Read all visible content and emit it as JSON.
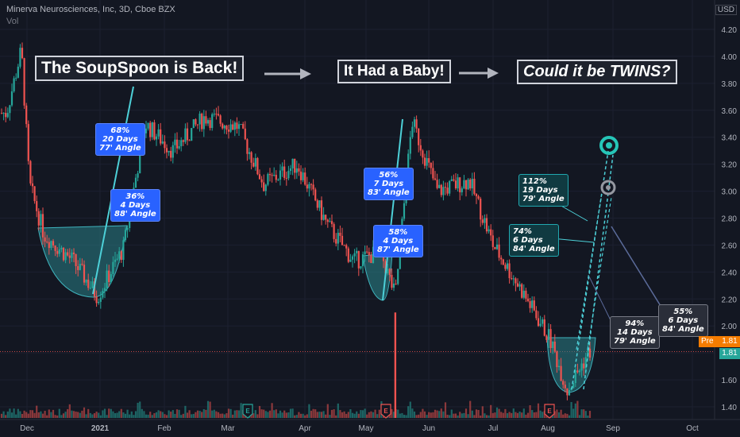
{
  "header": {
    "symbol_line": "Minerva Neurosciences, Inc, 3D, Cboe BZX",
    "indicator": "Vol",
    "currency": "USD"
  },
  "banners": {
    "soupspoon": "The SoupSpoon is Back!",
    "baby": "It Had a Baby!",
    "twins": "Could it be TWINS?"
  },
  "callouts": [
    {
      "pct": "68%",
      "days": "20 Days",
      "angle": "77' Angle"
    },
    {
      "pct": "36%",
      "days": "4 Days",
      "angle": "88' Angle"
    },
    {
      "pct": "56%",
      "days": "7 Days",
      "angle": "83' Angle"
    },
    {
      "pct": "58%",
      "days": "4 Days",
      "angle": "87' Angle"
    },
    {
      "pct": "112%",
      "days": "19 Days",
      "angle": "79' Angle"
    },
    {
      "pct": "74%",
      "days": "6 Days",
      "angle": "84' Angle"
    },
    {
      "pct": "94%",
      "days": "14 Days",
      "angle": "79' Angle"
    },
    {
      "pct": "55%",
      "days": "6 Days",
      "angle": "84' Angle"
    }
  ],
  "price_labels": {
    "pre_tag": "Pre",
    "pre_value": "1.81",
    "last_value": "1.81"
  },
  "event_markers": [
    "E",
    "E",
    "E"
  ],
  "colors": {
    "up": "#26a69a",
    "down": "#ef5350",
    "background": "#131722",
    "cup_fill": "#2a7f86",
    "blue_box": "#2962ff",
    "teal_box": "#103a41",
    "gray_box": "#2a2e39"
  },
  "chart_data": {
    "type": "candlestick",
    "title": "Minerva Neurosciences, Inc, 3D, Cboe BZX",
    "x_ticks": [
      "Dec",
      "2021",
      "Feb",
      "Mar",
      "Apr",
      "May",
      "Jun",
      "Jul",
      "Aug",
      "Sep",
      "Oct"
    ],
    "y_ticks": [
      "4.20",
      "4.00",
      "3.80",
      "3.60",
      "3.40",
      "3.20",
      "3.00",
      "2.80",
      "2.60",
      "2.40",
      "2.20",
      "2.00",
      "1.80",
      "1.60",
      "1.40"
    ],
    "ylim": [
      1.35,
      4.25
    ],
    "price_path": [
      {
        "date": "Nov 20",
        "price": 3.58
      },
      {
        "date": "Nov 28",
        "price": 4.05
      },
      {
        "date": "Dec 2",
        "price": 3.05
      },
      {
        "date": "Dec 8",
        "price": 2.68
      },
      {
        "date": "Dec 20",
        "price": 2.48
      },
      {
        "date": "Dec 30",
        "price": 2.22
      },
      {
        "date": "Jan 12",
        "price": 2.58
      },
      {
        "date": "Jan 22",
        "price": 3.5
      },
      {
        "date": "Feb 5",
        "price": 3.3
      },
      {
        "date": "Feb 20",
        "price": 3.55
      },
      {
        "date": "Mar 5",
        "price": 3.48
      },
      {
        "date": "Mar 15",
        "price": 3.05
      },
      {
        "date": "Mar 28",
        "price": 3.2
      },
      {
        "date": "Apr 12",
        "price": 2.75
      },
      {
        "date": "Apr 25",
        "price": 2.48
      },
      {
        "date": "May 8",
        "price": 2.55
      },
      {
        "date": "May 15",
        "price": 2.22
      },
      {
        "date": "May 23",
        "price": 3.52
      },
      {
        "date": "Jun 5",
        "price": 3.0
      },
      {
        "date": "Jun 20",
        "price": 3.08
      },
      {
        "date": "Jul 1",
        "price": 2.6
      },
      {
        "date": "Jul 15",
        "price": 2.3
      },
      {
        "date": "Aug 2",
        "price": 1.9
      },
      {
        "date": "Aug 10",
        "price": 1.52
      },
      {
        "date": "Aug 20",
        "price": 1.81
      }
    ],
    "volume_spike": {
      "date": "May 15",
      "note": "earnings"
    },
    "last_price": 1.81,
    "grid": true
  }
}
